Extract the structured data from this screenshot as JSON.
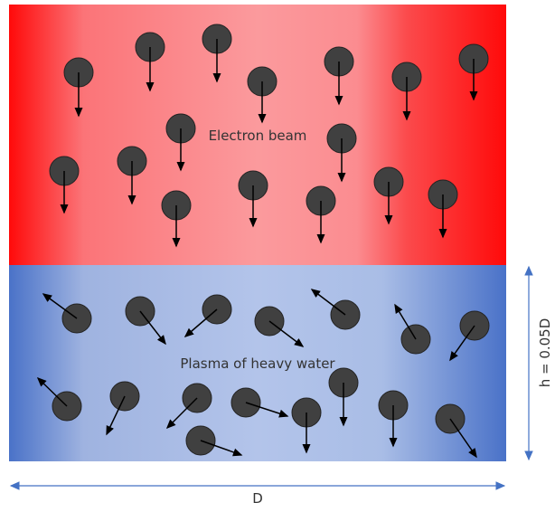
{
  "labels": {
    "electron_beam": "Electron beam",
    "plasma": "Plasma of heavy water",
    "width": "D",
    "height": "h = 0.05D"
  }
}
